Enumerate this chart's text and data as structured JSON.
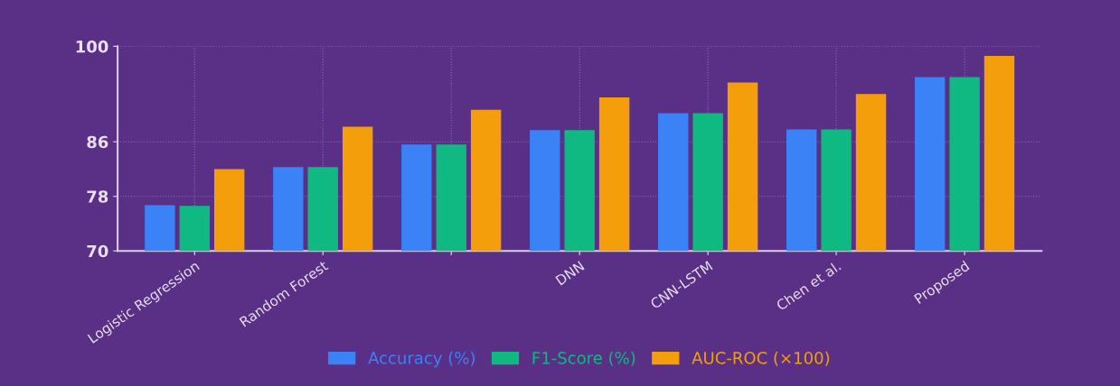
{
  "chart_data": {
    "type": "bar",
    "categories": [
      "Logistic Regression",
      "Random Forest",
      null,
      "DNN",
      "CNN-LSTM",
      "Chen et al.",
      "Proposed"
    ],
    "series": [
      {
        "name": "Accuracy (%)",
        "color": "#3b82f6",
        "values": [
          76.7,
          82.3,
          85.6,
          87.7,
          90.2,
          87.8,
          95.5
        ]
      },
      {
        "name": "F1-Score (%)",
        "color": "#10b981",
        "values": [
          76.6,
          82.3,
          85.6,
          87.7,
          90.2,
          87.8,
          95.5
        ]
      },
      {
        "name": "AUC-ROC (×100)",
        "color": "#f59e0b",
        "values": [
          82.0,
          88.2,
          90.7,
          92.5,
          94.7,
          93.0,
          98.6
        ]
      }
    ],
    "ylim": [
      70,
      100
    ],
    "yticks": [
      70,
      78,
      86,
      100
    ],
    "grid": true,
    "legend": "bottom"
  }
}
